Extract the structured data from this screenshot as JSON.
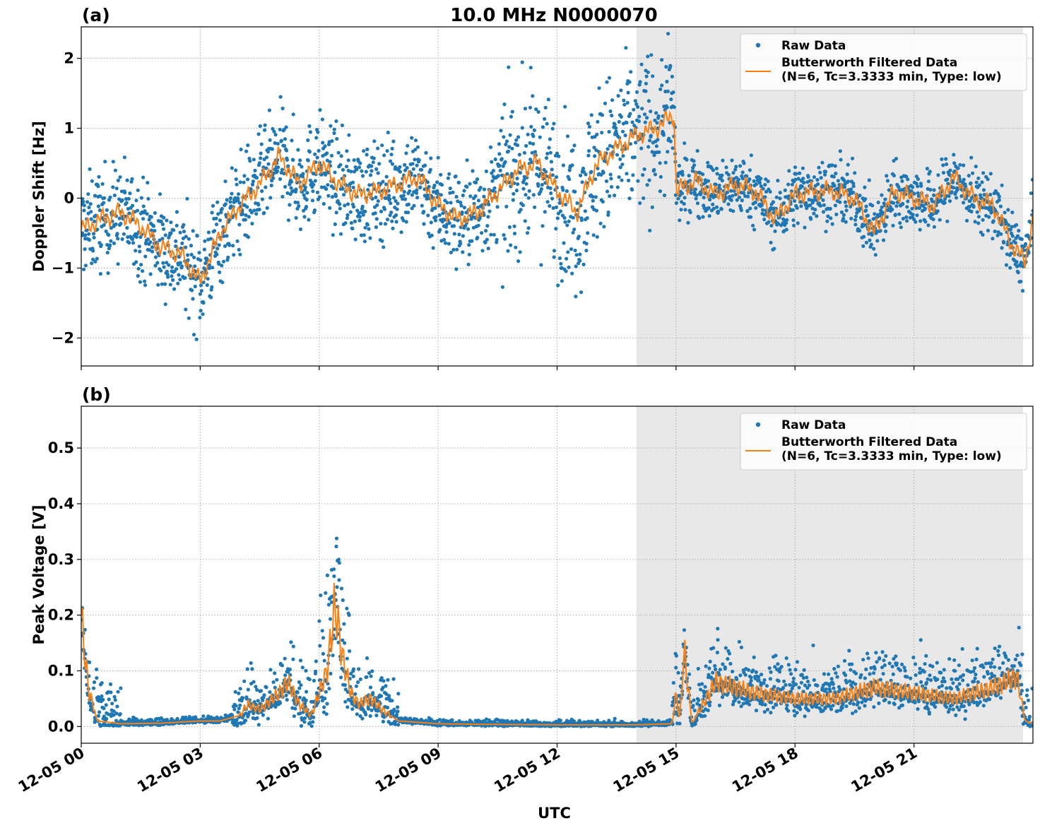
{
  "title": "10.0 MHz N0000070",
  "colors": {
    "raw": "#1f77b4",
    "filtered": "#ff7f0e",
    "shade": "#e8e8e8",
    "grid": "#b0b0b0"
  },
  "chart_data": [
    {
      "type": "scatter",
      "panel_label": "(a)",
      "ylabel": "Doppler Shift [Hz]",
      "xlabel": "",
      "xlim": [
        "12-05 00:00",
        "12-06 00:00"
      ],
      "ylim": [
        -2.4,
        2.45
      ],
      "yticks": [
        -2,
        -1,
        0,
        1,
        2
      ],
      "ytick_labels": [
        "−2",
        "−1",
        "0",
        "1",
        "2"
      ],
      "grid": true,
      "shaded_region": [
        "12-05 14:00",
        "12-05 23:45"
      ],
      "legend": {
        "placement": "top-right",
        "entries": [
          "Raw Data",
          "Butterworth Filtered Data",
          "(N=6, Tc=3.3333 min, Type: low)"
        ]
      },
      "series": [
        {
          "name": "Butterworth Filtered Data (N=6, Tc=3.3333 min, Type: low)",
          "x_hours": [
            0,
            0.5,
            1,
            1.5,
            2,
            2.5,
            3,
            3.5,
            4,
            4.5,
            5,
            5.5,
            6,
            6.5,
            7,
            7.5,
            8,
            8.5,
            9,
            9.5,
            10,
            10.5,
            11,
            11.5,
            12,
            12.5,
            13,
            13.5,
            14,
            14.5,
            14.95,
            15.0,
            15.5,
            16,
            16.5,
            17,
            17.5,
            18,
            18.5,
            19,
            19.5,
            20,
            20.5,
            21,
            21.5,
            22,
            22.5,
            23,
            23.5,
            23.8,
            24
          ],
          "values": [
            -0.45,
            -0.3,
            -0.2,
            -0.4,
            -0.7,
            -0.8,
            -1.2,
            -0.5,
            -0.1,
            0.2,
            0.6,
            0.2,
            0.5,
            0.2,
            0.05,
            0.1,
            0.2,
            0.3,
            -0.1,
            -0.3,
            -0.2,
            0.1,
            0.4,
            0.5,
            0.1,
            -0.2,
            0.5,
            0.7,
            0.9,
            1.0,
            1.2,
            0.1,
            0.25,
            0.05,
            0.2,
            0.1,
            -0.3,
            0.05,
            0.1,
            0.1,
            0.0,
            -0.5,
            0.1,
            0.0,
            -0.1,
            0.3,
            0.0,
            -0.1,
            -0.7,
            -0.9,
            -0.3
          ]
        },
        {
          "name": "Raw Data",
          "spread_hz": 0.35
        }
      ]
    },
    {
      "type": "scatter",
      "panel_label": "(b)",
      "ylabel": "Peak Voltage [V]",
      "xlabel": "UTC",
      "xlim": [
        "12-05 00:00",
        "12-06 00:00"
      ],
      "ylim": [
        -0.03,
        0.575
      ],
      "yticks": [
        0.0,
        0.1,
        0.2,
        0.3,
        0.4,
        0.5
      ],
      "ytick_labels": [
        "0.0",
        "0.1",
        "0.2",
        "0.3",
        "0.4",
        "0.5"
      ],
      "xtick_labels": [
        "12-05 00",
        "12-05 03",
        "12-05 06",
        "12-05 09",
        "12-05 12",
        "12-05 15",
        "12-05 18",
        "12-05 21"
      ],
      "xtick_hours": [
        0,
        3,
        6,
        9,
        12,
        15,
        18,
        21
      ],
      "grid": true,
      "shaded_region": [
        "12-05 14:00",
        "12-05 23:45"
      ],
      "legend": {
        "placement": "top-right",
        "entries": [
          "Raw Data",
          "Butterworth Filtered Data",
          "(N=6, Tc=3.3333 min, Type: low)"
        ]
      },
      "series": [
        {
          "name": "Butterworth Filtered Data (N=6, Tc=3.3333 min, Type: low)",
          "x_hours": [
            0,
            0.1,
            0.2,
            0.3,
            0.4,
            1,
            2,
            3,
            3.5,
            4,
            4.2,
            4.5,
            5,
            5.2,
            5.5,
            5.8,
            6,
            6.2,
            6.4,
            6.6,
            6.8,
            7,
            7.3,
            7.6,
            8,
            9,
            10,
            12,
            14,
            14.9,
            15.0,
            15.1,
            15.2,
            15.4,
            16,
            17,
            18,
            19,
            20,
            21,
            22,
            23,
            23.6,
            23.8,
            24
          ],
          "values": [
            0.2,
            0.12,
            0.06,
            0.04,
            0.01,
            0.005,
            0.006,
            0.01,
            0.01,
            0.02,
            0.04,
            0.03,
            0.06,
            0.08,
            0.04,
            0.02,
            0.06,
            0.1,
            0.22,
            0.12,
            0.06,
            0.04,
            0.05,
            0.03,
            0.01,
            0.005,
            0.004,
            0.003,
            0.003,
            0.005,
            0.06,
            0.01,
            0.14,
            0.005,
            0.08,
            0.06,
            0.05,
            0.05,
            0.07,
            0.06,
            0.05,
            0.07,
            0.09,
            0.01,
            0.005
          ]
        },
        {
          "name": "Raw Data",
          "spread_v": 0.035
        }
      ]
    }
  ]
}
